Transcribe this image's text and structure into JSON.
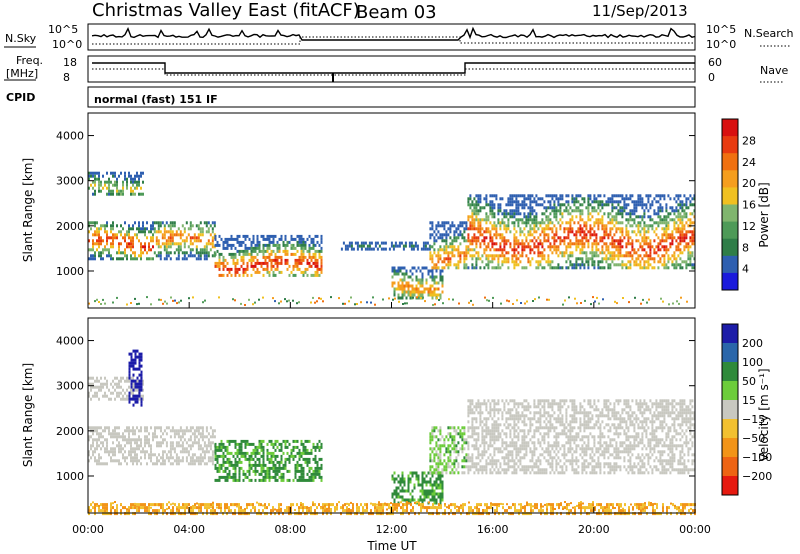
{
  "header": {
    "title": "Christmas Valley East (fitACF)",
    "beam": "Beam 03",
    "date": "11/Sep/2013"
  },
  "status_panels": {
    "nsky_label": "N.Sky",
    "nsearch_label": "N.Search",
    "nsky_ticks": [
      "10^5",
      "10^0"
    ],
    "nsearch_ticks": [
      "10^5",
      "10^0"
    ],
    "freq_label": [
      "Freq.",
      "[MHz]"
    ],
    "freq_ticks": [
      "18",
      "8"
    ],
    "nave_label": "Nave",
    "nave_ticks": [
      "60",
      "0"
    ],
    "cpid_label": "CPID",
    "cpid_value": "normal (fast) 151 IF"
  },
  "chart_data": [
    {
      "type": "heatmap",
      "name": "Power",
      "ylabel": "Slant Range [km]",
      "yticks": [
        "4000",
        "3000",
        "2000",
        "1000"
      ],
      "ylim": [
        180,
        4500
      ],
      "xlim": [
        0,
        24
      ],
      "xticks": [
        "00:00",
        "04:00",
        "08:00",
        "12:00",
        "16:00",
        "20:00",
        "00:00"
      ],
      "colorbar": {
        "label": "Power [dB]",
        "ticks": [
          "28",
          "24",
          "20",
          "16",
          "12",
          "8",
          "4"
        ],
        "colors": [
          "#1a1adc",
          "#2e5fb0",
          "#2f7d48",
          "#4e9a58",
          "#80b56e",
          "#f0c020",
          "#f59e1e",
          "#f07010",
          "#e83a10",
          "#d81010"
        ]
      },
      "echo_regions": [
        {
          "t0": 0.0,
          "t1": 2.6,
          "range_min": 1300,
          "range_max": 2100,
          "peak_range": 1650,
          "peak_power_db": 28
        },
        {
          "t0": 0.0,
          "t1": 2.2,
          "range_min": 2700,
          "range_max": 3200,
          "peak_range": 2900,
          "peak_power_db": 16
        },
        {
          "t0": 2.6,
          "t1": 5.0,
          "range_min": 1300,
          "range_max": 2100,
          "peak_range": 1700,
          "peak_power_db": 24
        },
        {
          "t0": 5.0,
          "t1": 9.2,
          "range_min": 900,
          "range_max": 1800,
          "peak_range": 1150,
          "peak_power_db": 28
        },
        {
          "t0": 10.0,
          "t1": 13.5,
          "range_min": 1500,
          "range_max": 1650,
          "peak_range": 1580,
          "peak_power_db": 4
        },
        {
          "t0": 12.0,
          "t1": 14.0,
          "range_min": 400,
          "range_max": 1100,
          "peak_range": 700,
          "peak_power_db": 22
        },
        {
          "t0": 13.5,
          "t1": 15.0,
          "range_min": 1100,
          "range_max": 2100,
          "peak_range": 1300,
          "peak_power_db": 24
        },
        {
          "t0": 15.0,
          "t1": 24.0,
          "range_min": 1100,
          "range_max": 2700,
          "peak_range": 1700,
          "peak_power_db": 28
        }
      ]
    },
    {
      "type": "heatmap",
      "name": "Velocity",
      "ylabel": "Slant Range [km]",
      "yticks": [
        "4000",
        "3000",
        "2000",
        "1000"
      ],
      "ylim": [
        180,
        4500
      ],
      "xlim": [
        0,
        24
      ],
      "xticks": [
        "00:00",
        "04:00",
        "08:00",
        "12:00",
        "16:00",
        "20:00",
        "00:00"
      ],
      "xlabel": "Time UT",
      "colorbar": {
        "label": "Velocity [m s⁻¹]",
        "ticks": [
          "200",
          "100",
          "50",
          "15",
          "−15",
          "−50",
          "−100",
          "−200"
        ],
        "colors": [
          "#1c1ca8",
          "#2a66aa",
          "#2f8a3a",
          "#6ccc3a",
          "#c8c8c0",
          "#f2c030",
          "#f29418",
          "#ee6414",
          "#e61a10"
        ]
      },
      "echo_regions": [
        {
          "t0": 0.0,
          "t1": 3.0,
          "range_min": 1300,
          "range_max": 2100,
          "velocity": 0
        },
        {
          "t0": 0.0,
          "t1": 2.2,
          "range_min": 2700,
          "range_max": 3200,
          "velocity": 0
        },
        {
          "t0": 1.6,
          "t1": 2.1,
          "range_min": 2600,
          "range_max": 3800,
          "velocity": 200
        },
        {
          "t0": 3.0,
          "t1": 5.0,
          "range_min": 1300,
          "range_max": 2100,
          "velocity": 0
        },
        {
          "t0": 5.0,
          "t1": 9.2,
          "range_min": 900,
          "range_max": 1800,
          "velocity": 40
        },
        {
          "t0": 12.0,
          "t1": 14.0,
          "range_min": 400,
          "range_max": 1100,
          "velocity": 40
        },
        {
          "t0": 13.5,
          "t1": 15.0,
          "range_min": 1100,
          "range_max": 2100,
          "velocity": 20
        },
        {
          "t0": 15.0,
          "t1": 24.0,
          "range_min": 1100,
          "range_max": 2700,
          "velocity": 0
        },
        {
          "t0": 0.0,
          "t1": 24.0,
          "range_min": 180,
          "range_max": 400,
          "velocity": -30
        }
      ]
    }
  ]
}
